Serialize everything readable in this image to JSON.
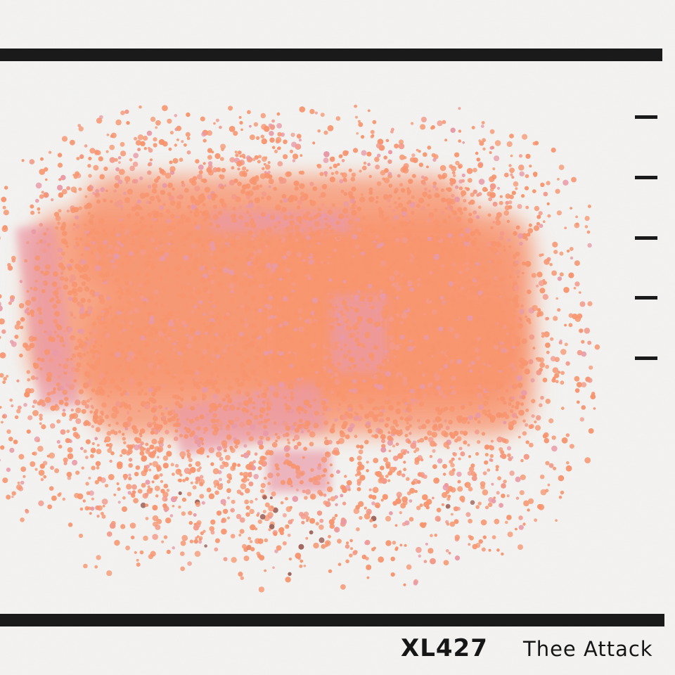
{
  "swatch": {
    "code": "XL427",
    "name": "Thee Attack",
    "colors": {
      "primary": "#f7956f",
      "secondary": "#f39a8a",
      "pink": "#e99aa8",
      "dark_speck": "#a0645c",
      "paper": "#f4f3f1",
      "ink": "#1b1a1a"
    }
  }
}
